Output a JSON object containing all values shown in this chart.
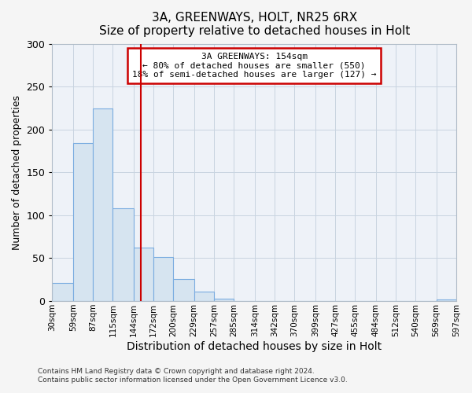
{
  "title": "3A, GREENWAYS, HOLT, NR25 6RX",
  "subtitle": "Size of property relative to detached houses in Holt",
  "xlabel": "Distribution of detached houses by size in Holt",
  "ylabel": "Number of detached properties",
  "footer_line1": "Contains HM Land Registry data © Crown copyright and database right 2024.",
  "footer_line2": "Contains public sector information licensed under the Open Government Licence v3.0.",
  "bins": [
    30,
    59,
    87,
    115,
    144,
    172,
    200,
    229,
    257,
    285,
    314,
    342,
    370,
    399,
    427,
    455,
    484,
    512,
    540,
    569,
    597
  ],
  "counts": [
    21,
    184,
    224,
    108,
    62,
    51,
    26,
    11,
    3,
    0,
    0,
    0,
    0,
    0,
    0,
    0,
    0,
    0,
    0,
    2
  ],
  "bar_facecolor": "#d6e4f0",
  "bar_edgecolor": "#7aace0",
  "vline_x": 154,
  "vline_color": "#cc0000",
  "annotation_title": "3A GREENWAYS: 154sqm",
  "annotation_line1": "← 80% of detached houses are smaller (550)",
  "annotation_line2": "18% of semi-detached houses are larger (127) →",
  "annotation_box_edgecolor": "#cc0000",
  "xlim": [
    30,
    597
  ],
  "ylim": [
    0,
    300
  ],
  "yticks": [
    0,
    50,
    100,
    150,
    200,
    250,
    300
  ],
  "xtick_labels": [
    "30sqm",
    "59sqm",
    "87sqm",
    "115sqm",
    "144sqm",
    "172sqm",
    "200sqm",
    "229sqm",
    "257sqm",
    "285sqm",
    "314sqm",
    "342sqm",
    "370sqm",
    "399sqm",
    "427sqm",
    "455sqm",
    "484sqm",
    "512sqm",
    "540sqm",
    "569sqm",
    "597sqm"
  ],
  "xtick_positions": [
    30,
    59,
    87,
    115,
    144,
    172,
    200,
    229,
    257,
    285,
    314,
    342,
    370,
    399,
    427,
    455,
    484,
    512,
    540,
    569,
    597
  ],
  "figure_background": "#f5f5f5",
  "plot_background": "#eef2f8"
}
